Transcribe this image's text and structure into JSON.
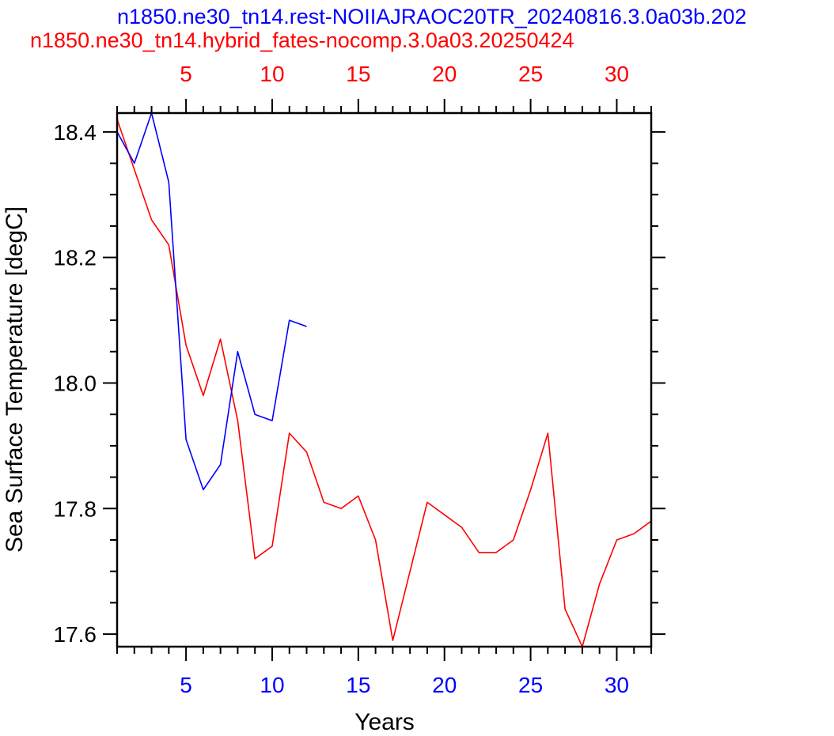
{
  "chart_data": {
    "type": "line",
    "title_blue": "n1850.ne30_tn14.rest-NOIIAJRAOC20TR_20240816.3.0a03b.202",
    "title_red": "n1850.ne30_tn14.hybrid_fates-nocomp.3.0a03.20250424",
    "xlabel": "Years",
    "ylabel": "Sea Surface Temperature [degC]",
    "xlim": [
      1,
      32
    ],
    "ylim": [
      17.58,
      18.43
    ],
    "bottom_xticks": [
      "5",
      "10",
      "15",
      "20",
      "25",
      "30"
    ],
    "top_xticks": [
      "5",
      "10",
      "15",
      "20",
      "25",
      "30"
    ],
    "yticks": [
      "17.6",
      "17.8",
      "18.0",
      "18.2",
      "18.4"
    ],
    "series": [
      {
        "name": "n1850.ne30_tn14.rest-NOIIAJRAOC20TR_20240816.3.0a03b.202",
        "color": "#0000ff",
        "x": [
          1,
          2,
          3,
          4,
          5,
          6,
          7,
          8,
          9,
          10,
          11,
          12
        ],
        "y": [
          18.4,
          18.35,
          18.43,
          18.32,
          17.91,
          17.83,
          17.87,
          18.05,
          17.95,
          17.94,
          18.1,
          18.09
        ]
      },
      {
        "name": "n1850.ne30_tn14.hybrid_fates-nocomp.3.0a03.20250424",
        "color": "#ff0000",
        "x": [
          1,
          2,
          3,
          4,
          5,
          6,
          7,
          8,
          9,
          10,
          11,
          12,
          13,
          14,
          15,
          16,
          17,
          18,
          19,
          20,
          21,
          22,
          23,
          24,
          25,
          26,
          27,
          28,
          29,
          30,
          31,
          32
        ],
        "y": [
          18.42,
          18.34,
          18.26,
          18.22,
          18.06,
          17.98,
          18.07,
          17.94,
          17.72,
          17.74,
          17.92,
          17.89,
          17.81,
          17.8,
          17.82,
          17.75,
          17.59,
          17.7,
          17.81,
          17.79,
          17.77,
          17.73,
          17.73,
          17.75,
          17.83,
          17.92,
          17.64,
          17.58,
          17.68,
          17.75,
          17.76,
          17.78
        ]
      }
    ]
  }
}
